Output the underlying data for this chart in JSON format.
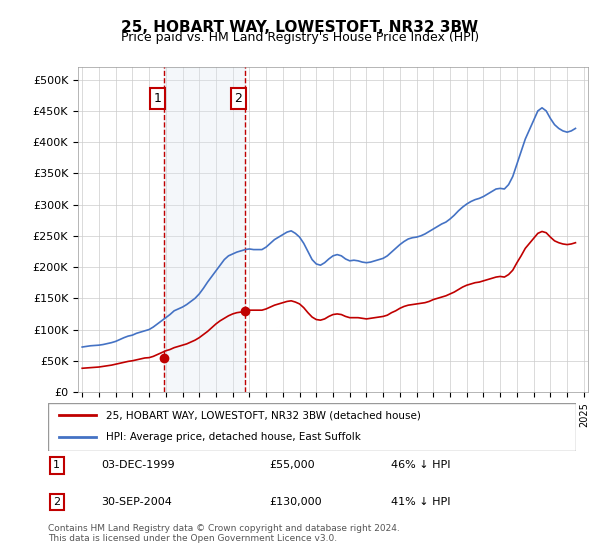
{
  "title": "25, HOBART WAY, LOWESTOFT, NR32 3BW",
  "subtitle": "Price paid vs. HM Land Registry's House Price Index (HPI)",
  "legend_line1": "25, HOBART WAY, LOWESTOFT, NR32 3BW (detached house)",
  "legend_line2": "HPI: Average price, detached house, East Suffolk",
  "footnote": "Contains HM Land Registry data © Crown copyright and database right 2024.\nThis data is licensed under the Open Government Licence v3.0.",
  "sale1_date": "03-DEC-1999",
  "sale1_price": 55000,
  "sale1_pct": "46% ↓ HPI",
  "sale1_x": 1999.92,
  "sale2_date": "30-SEP-2004",
  "sale2_price": 130000,
  "sale2_pct": "41% ↓ HPI",
  "sale2_x": 2004.75,
  "hpi_color": "#4472c4",
  "price_color": "#c00000",
  "shade_color": "#dce6f1",
  "vline_color": "#c00000",
  "marker_color": "#c00000",
  "box_edge_color": "#c00000",
  "ylim_min": 0,
  "ylim_max": 520000,
  "xlabel_start": 1995,
  "xlabel_end": 2025,
  "background_color": "#ffffff",
  "grid_color": "#cccccc",
  "hpi_data_x": [
    1995.0,
    1995.25,
    1995.5,
    1995.75,
    1996.0,
    1996.25,
    1996.5,
    1996.75,
    1997.0,
    1997.25,
    1997.5,
    1997.75,
    1998.0,
    1998.25,
    1998.5,
    1998.75,
    1999.0,
    1999.25,
    1999.5,
    1999.75,
    2000.0,
    2000.25,
    2000.5,
    2000.75,
    2001.0,
    2001.25,
    2001.5,
    2001.75,
    2002.0,
    2002.25,
    2002.5,
    2002.75,
    2003.0,
    2003.25,
    2003.5,
    2003.75,
    2004.0,
    2004.25,
    2004.5,
    2004.75,
    2005.0,
    2005.25,
    2005.5,
    2005.75,
    2006.0,
    2006.25,
    2006.5,
    2006.75,
    2007.0,
    2007.25,
    2007.5,
    2007.75,
    2008.0,
    2008.25,
    2008.5,
    2008.75,
    2009.0,
    2009.25,
    2009.5,
    2009.75,
    2010.0,
    2010.25,
    2010.5,
    2010.75,
    2011.0,
    2011.25,
    2011.5,
    2011.75,
    2012.0,
    2012.25,
    2012.5,
    2012.75,
    2013.0,
    2013.25,
    2013.5,
    2013.75,
    2014.0,
    2014.25,
    2014.5,
    2014.75,
    2015.0,
    2015.25,
    2015.5,
    2015.75,
    2016.0,
    2016.25,
    2016.5,
    2016.75,
    2017.0,
    2017.25,
    2017.5,
    2017.75,
    2018.0,
    2018.25,
    2018.5,
    2018.75,
    2019.0,
    2019.25,
    2019.5,
    2019.75,
    2020.0,
    2020.25,
    2020.5,
    2020.75,
    2021.0,
    2021.25,
    2021.5,
    2021.75,
    2022.0,
    2022.25,
    2022.5,
    2022.75,
    2023.0,
    2023.25,
    2023.5,
    2023.75,
    2024.0,
    2024.25,
    2024.5
  ],
  "hpi_data_y": [
    72000,
    73000,
    74000,
    74500,
    75000,
    76000,
    77500,
    79000,
    81000,
    84000,
    87000,
    89500,
    91000,
    94000,
    96000,
    98000,
    100000,
    104000,
    109000,
    114000,
    119000,
    124000,
    130000,
    133000,
    136000,
    140000,
    145000,
    150000,
    157000,
    166000,
    176000,
    185000,
    194000,
    203000,
    212000,
    218000,
    221000,
    224000,
    226000,
    228000,
    229000,
    228000,
    228000,
    228000,
    232000,
    238000,
    244000,
    248000,
    252000,
    256000,
    258000,
    254000,
    248000,
    238000,
    225000,
    212000,
    205000,
    203000,
    207000,
    213000,
    218000,
    220000,
    218000,
    213000,
    210000,
    211000,
    210000,
    208000,
    207000,
    208000,
    210000,
    212000,
    214000,
    218000,
    224000,
    230000,
    236000,
    241000,
    245000,
    247000,
    248000,
    250000,
    253000,
    257000,
    261000,
    265000,
    269000,
    272000,
    277000,
    283000,
    290000,
    296000,
    301000,
    305000,
    308000,
    310000,
    313000,
    317000,
    321000,
    325000,
    326000,
    325000,
    332000,
    345000,
    365000,
    385000,
    405000,
    420000,
    435000,
    450000,
    455000,
    450000,
    438000,
    428000,
    422000,
    418000,
    416000,
    418000,
    422000
  ],
  "price_data_x": [
    1995.0,
    1995.25,
    1995.5,
    1995.75,
    1996.0,
    1996.25,
    1996.5,
    1996.75,
    1997.0,
    1997.25,
    1997.5,
    1997.75,
    1998.0,
    1998.25,
    1998.5,
    1998.75,
    1999.0,
    1999.25,
    1999.5,
    1999.75,
    2000.0,
    2000.25,
    2000.5,
    2000.75,
    2001.0,
    2001.25,
    2001.5,
    2001.75,
    2002.0,
    2002.25,
    2002.5,
    2002.75,
    2003.0,
    2003.25,
    2003.5,
    2003.75,
    2004.0,
    2004.25,
    2004.5,
    2004.75,
    2005.0,
    2005.25,
    2005.5,
    2005.75,
    2006.0,
    2006.25,
    2006.5,
    2006.75,
    2007.0,
    2007.25,
    2007.5,
    2007.75,
    2008.0,
    2008.25,
    2008.5,
    2008.75,
    2009.0,
    2009.25,
    2009.5,
    2009.75,
    2010.0,
    2010.25,
    2010.5,
    2010.75,
    2011.0,
    2011.25,
    2011.5,
    2011.75,
    2012.0,
    2012.25,
    2012.5,
    2012.75,
    2013.0,
    2013.25,
    2013.5,
    2013.75,
    2014.0,
    2014.25,
    2014.5,
    2014.75,
    2015.0,
    2015.25,
    2015.5,
    2015.75,
    2016.0,
    2016.25,
    2016.5,
    2016.75,
    2017.0,
    2017.25,
    2017.5,
    2017.75,
    2018.0,
    2018.25,
    2018.5,
    2018.75,
    2019.0,
    2019.25,
    2019.5,
    2019.75,
    2020.0,
    2020.25,
    2020.5,
    2020.75,
    2021.0,
    2021.25,
    2021.5,
    2021.75,
    2022.0,
    2022.25,
    2022.5,
    2022.75,
    2023.0,
    2023.25,
    2023.5,
    2023.75,
    2024.0,
    2024.25,
    2024.5
  ],
  "price_data_y": [
    38000,
    38500,
    39000,
    39500,
    40000,
    41000,
    42000,
    43000,
    44500,
    46000,
    47500,
    49000,
    50000,
    51500,
    53000,
    54500,
    55000,
    57000,
    60000,
    63000,
    66000,
    68000,
    71000,
    73000,
    75000,
    77000,
    80000,
    83000,
    87000,
    92000,
    97000,
    103000,
    109000,
    114000,
    118000,
    122000,
    125000,
    127000,
    128000,
    130000,
    131000,
    131000,
    131000,
    131000,
    133000,
    136000,
    139000,
    141000,
    143000,
    145000,
    146000,
    144000,
    141000,
    135000,
    127000,
    120000,
    116000,
    115000,
    117000,
    121000,
    124000,
    125000,
    124000,
    121000,
    119000,
    119000,
    119000,
    118000,
    117000,
    118000,
    119000,
    120000,
    121000,
    123000,
    127000,
    130000,
    134000,
    137000,
    139000,
    140000,
    141000,
    142000,
    143000,
    145000,
    148000,
    150000,
    152000,
    154000,
    157000,
    160000,
    164000,
    168000,
    171000,
    173000,
    175000,
    176000,
    178000,
    180000,
    182000,
    184000,
    185000,
    184000,
    188000,
    195000,
    207000,
    218000,
    230000,
    238000,
    246000,
    254000,
    257000,
    255000,
    248000,
    242000,
    239000,
    237000,
    236000,
    237000,
    239000
  ]
}
